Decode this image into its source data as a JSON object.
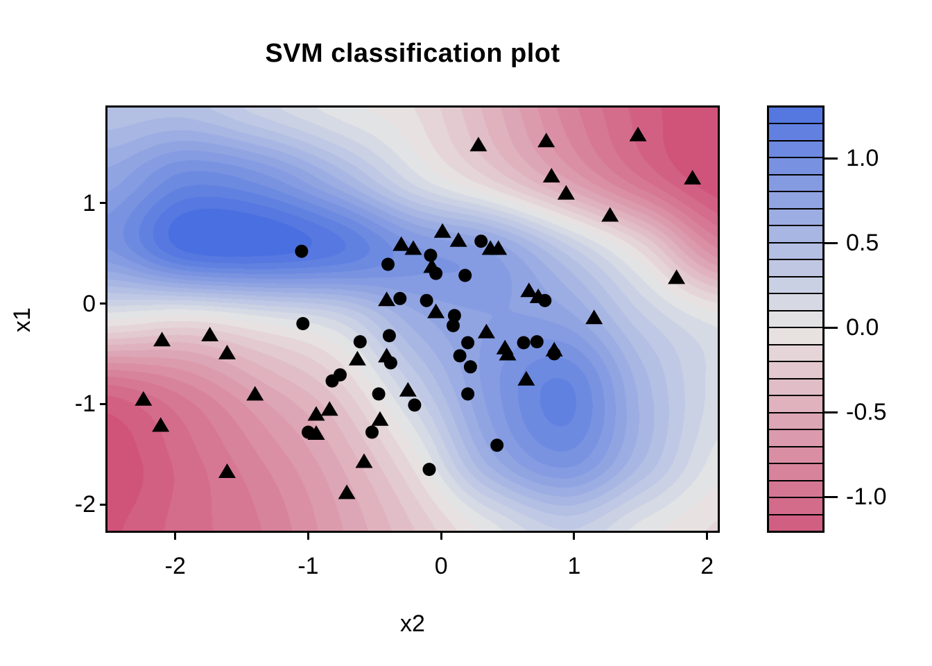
{
  "chart_data": {
    "type": "filled_contour_scatter",
    "title": "SVM classification plot",
    "xlabel": "x2",
    "ylabel": "x1",
    "x_range": [
      -2.51,
      2.08
    ],
    "y_range": [
      -2.26,
      1.95
    ],
    "grid": false,
    "legend_position": "right-colorbar",
    "x_ticks": [
      {
        "value": -2,
        "label": "-2"
      },
      {
        "value": -1,
        "label": "-1"
      },
      {
        "value": 0,
        "label": "0"
      },
      {
        "value": 1,
        "label": "1"
      },
      {
        "value": 2,
        "label": "2"
      }
    ],
    "y_ticks": [
      {
        "value": 1,
        "label": "1"
      },
      {
        "value": 0,
        "label": "0"
      },
      {
        "value": -1,
        "label": "-1"
      },
      {
        "value": -2,
        "label": "-2"
      }
    ],
    "colorbar": {
      "min": -1.2,
      "max": 1.3,
      "step": 0.1,
      "ticks": [
        {
          "value": 1.0,
          "label": "1.0"
        },
        {
          "value": 0.5,
          "label": "0.5"
        },
        {
          "value": 0.0,
          "label": "0.0"
        },
        {
          "value": -0.5,
          "label": "-0.5"
        },
        {
          "value": -1.0,
          "label": "-1.0"
        }
      ]
    },
    "palette": {
      "positive_full": "#4a6fe0",
      "zero": "#e8e7e5",
      "negative_full": "#d0547a",
      "pos_limit": 1.35,
      "neg_limit": -1.25,
      "quantize_step": 0.1,
      "clamp": [
        -1.25,
        1.35
      ]
    },
    "point_color": "#000000",
    "surface": {
      "comment": "decision values f(x2,x1); rows top(x1=1.94) to bottom(x1=-2.26)",
      "grid_x": [
        -2.5,
        -1.925,
        -1.35,
        -0.775,
        -0.2,
        0.375,
        0.95,
        1.525,
        2.1
      ],
      "grid_y": [
        1.94,
        1.24,
        0.54,
        -0.16,
        -0.86,
        -1.56,
        -2.26
      ],
      "values": [
        [
          0.42,
          0.45,
          0.25,
          0.05,
          -0.1,
          -0.45,
          -0.85,
          -1.15,
          -1.32
        ],
        [
          0.75,
          1.05,
          0.95,
          0.6,
          0.15,
          -0.2,
          -0.6,
          -1.0,
          -1.3
        ],
        [
          0.9,
          1.32,
          1.36,
          1.22,
          0.92,
          0.78,
          0.35,
          -0.15,
          -0.8
        ],
        [
          0.0,
          -0.08,
          0.05,
          0.22,
          0.65,
          0.8,
          0.75,
          0.32,
          0.05
        ],
        [
          -1.05,
          -0.85,
          -0.55,
          -0.25,
          0.3,
          0.85,
          1.12,
          0.55,
          0.15
        ],
        [
          -1.28,
          -1.05,
          -0.8,
          -0.5,
          -0.05,
          0.65,
          0.95,
          0.5,
          0.05
        ],
        [
          -1.22,
          -1.05,
          -0.9,
          -0.62,
          -0.3,
          0.05,
          0.3,
          0.05,
          -0.12
        ]
      ]
    },
    "points": {
      "circles": [
        [
          -1.05,
          0.52
        ],
        [
          -0.4,
          0.39
        ],
        [
          -0.31,
          0.05
        ],
        [
          0.3,
          0.62
        ],
        [
          -0.08,
          0.48
        ],
        [
          -0.04,
          0.3
        ],
        [
          0.18,
          0.28
        ],
        [
          -0.11,
          0.03
        ],
        [
          0.1,
          -0.12
        ],
        [
          0.09,
          -0.22
        ],
        [
          0.78,
          0.03
        ],
        [
          -1.04,
          -0.2
        ],
        [
          -0.61,
          -0.38
        ],
        [
          -0.39,
          -0.32
        ],
        [
          -0.38,
          -0.59
        ],
        [
          -0.82,
          -0.77
        ],
        [
          -0.76,
          -0.71
        ],
        [
          -0.47,
          -0.9
        ],
        [
          -1.0,
          -1.28
        ],
        [
          -0.52,
          -1.28
        ],
        [
          -0.2,
          -1.01
        ],
        [
          0.2,
          -0.39
        ],
        [
          0.62,
          -0.39
        ],
        [
          0.72,
          -0.38
        ],
        [
          0.85,
          -0.5
        ],
        [
          0.14,
          -0.52
        ],
        [
          0.22,
          -0.63
        ],
        [
          0.2,
          -0.9
        ],
        [
          0.42,
          -1.41
        ],
        [
          -0.09,
          -1.65
        ]
      ],
      "triangles": [
        [
          -0.3,
          0.59
        ],
        [
          -0.21,
          0.55
        ],
        [
          -0.41,
          0.04
        ],
        [
          0.28,
          1.58
        ],
        [
          0.79,
          1.62
        ],
        [
          1.48,
          1.68
        ],
        [
          1.89,
          1.25
        ],
        [
          0.83,
          1.27
        ],
        [
          0.94,
          1.1
        ],
        [
          1.27,
          0.88
        ],
        [
          0.01,
          0.72
        ],
        [
          0.13,
          0.63
        ],
        [
          0.37,
          0.55
        ],
        [
          0.43,
          0.55
        ],
        [
          -0.07,
          0.37
        ],
        [
          -0.04,
          -0.08
        ],
        [
          0.66,
          0.13
        ],
        [
          0.73,
          0.07
        ],
        [
          1.77,
          0.26
        ],
        [
          1.15,
          -0.14
        ],
        [
          -2.1,
          -0.36
        ],
        [
          -1.74,
          -0.31
        ],
        [
          -1.61,
          -0.49
        ],
        [
          -2.24,
          -0.95
        ],
        [
          -2.11,
          -1.21
        ],
        [
          -1.4,
          -0.9
        ],
        [
          -1.61,
          -1.67
        ],
        [
          -0.63,
          -0.55
        ],
        [
          -0.41,
          -0.52
        ],
        [
          -0.25,
          -0.86
        ],
        [
          -0.94,
          -1.1
        ],
        [
          -0.84,
          -1.05
        ],
        [
          -0.94,
          -1.29
        ],
        [
          -0.46,
          -1.15
        ],
        [
          -0.58,
          -1.57
        ],
        [
          -0.71,
          -1.88
        ],
        [
          0.34,
          -0.28
        ],
        [
          0.48,
          -0.44
        ],
        [
          0.5,
          -0.5
        ],
        [
          0.85,
          -0.46
        ],
        [
          0.64,
          -0.75
        ]
      ]
    }
  }
}
